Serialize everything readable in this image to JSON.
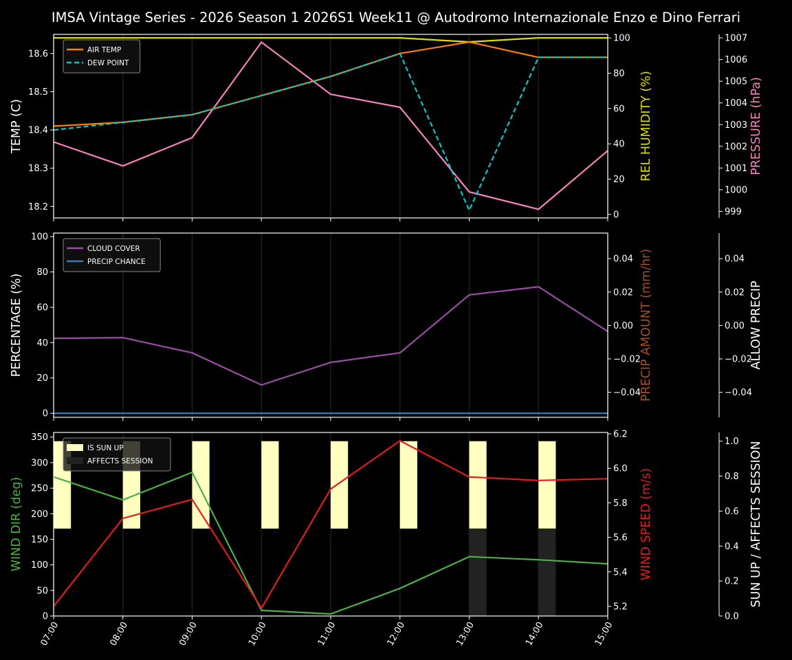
{
  "chart_data": {
    "type": "line",
    "title": "IMSA Vintage Series - 2026 Season 1 2026S1 Week11 @ Autodromo Internazionale Enzo e Dino Ferrari",
    "x": [
      "07:00",
      "08:00",
      "09:00",
      "10:00",
      "11:00",
      "12:00",
      "13:00",
      "14:00",
      "15:00"
    ],
    "grid": "vertical-only",
    "panels": [
      {
        "axes": [
          {
            "label": "TEMP (C)",
            "color": "#ffffff",
            "lim": [
              18.17,
              18.65
            ],
            "ticks": [
              {
                "v": 18.2,
                "t": "18.2"
              },
              {
                "v": 18.3,
                "t": "18.3"
              },
              {
                "v": 18.4,
                "t": "18.4"
              },
              {
                "v": 18.5,
                "t": "18.5"
              },
              {
                "v": 18.6,
                "t": "18.6"
              }
            ]
          },
          {
            "label": "REL HUMIDITY (%)",
            "color": "#dddd00",
            "lim": [
              -2,
              102
            ],
            "ticks": [
              {
                "v": 0,
                "t": "0"
              },
              {
                "v": 20,
                "t": "20"
              },
              {
                "v": 40,
                "t": "40"
              },
              {
                "v": 60,
                "t": "60"
              },
              {
                "v": 80,
                "t": "80"
              },
              {
                "v": 100,
                "t": "100"
              }
            ]
          },
          {
            "label": "PRESSURE (hPa)",
            "color": "#f781bf",
            "lim": [
              998.7,
              1007.16
            ],
            "ticks": [
              {
                "v": 999,
                "t": "999"
              },
              {
                "v": 1000,
                "t": "1000"
              },
              {
                "v": 1001,
                "t": "1001"
              },
              {
                "v": 1002,
                "t": "1002"
              },
              {
                "v": 1003,
                "t": "1003"
              },
              {
                "v": 1004,
                "t": "1004"
              },
              {
                "v": 1005,
                "t": "1005"
              },
              {
                "v": 1006,
                "t": "1006"
              },
              {
                "v": 1007,
                "t": "1007"
              }
            ]
          }
        ],
        "legend": "top-left",
        "series": [
          {
            "axis": 1,
            "color": "#dddd00",
            "dash": "",
            "values": [
              100,
              100,
              100,
              100,
              100,
              100,
              97.7,
              100,
              100
            ]
          },
          {
            "axis": 2,
            "color": "#f781bf",
            "dash": "",
            "values": [
              1002.2,
              1001.1,
              1002.4,
              1006.8,
              1004.4,
              1003.8,
              999.9,
              999.1,
              1001.8
            ]
          },
          {
            "name": "AIR TEMP",
            "axis": 0,
            "color": "#ff7f00",
            "dash": "",
            "values": [
              18.41,
              18.42,
              18.44,
              18.49,
              18.54,
              18.6,
              18.63,
              18.59,
              18.59
            ]
          },
          {
            "name": "DEW POINT",
            "axis": 0,
            "color": "#00cccc",
            "dash": "7,4",
            "values": [
              18.4,
              18.42,
              18.44,
              18.49,
              18.54,
              18.6,
              18.19,
              18.59,
              18.59
            ]
          }
        ]
      },
      {
        "axes": [
          {
            "label": "PERCENTAGE (%)",
            "color": "#ffffff",
            "lim": [
              -2.3,
              102
            ],
            "ticks": [
              {
                "v": 0,
                "t": "0"
              },
              {
                "v": 20,
                "t": "20"
              },
              {
                "v": 40,
                "t": "40"
              },
              {
                "v": 60,
                "t": "60"
              },
              {
                "v": 80,
                "t": "80"
              },
              {
                "v": 100,
                "t": "100"
              }
            ]
          },
          {
            "label": "PRECIP AMOUNT (mm/hr)",
            "color": "#a0522d",
            "lim": [
              -0.055,
              0.0553
            ],
            "ticks": [
              {
                "v": -0.04,
                "t": "−0.04"
              },
              {
                "v": -0.02,
                "t": "−0.02"
              },
              {
                "v": 0,
                "t": "0.00"
              },
              {
                "v": 0.02,
                "t": "0.02"
              },
              {
                "v": 0.04,
                "t": "0.04"
              }
            ]
          },
          {
            "label": "ALLOW PRECIP",
            "color": "#ffffff",
            "lim": [
              -0.055,
              0.0553
            ],
            "ticks": [
              {
                "v": -0.04,
                "t": "−0.04"
              },
              {
                "v": -0.02,
                "t": "−0.02"
              },
              {
                "v": 0,
                "t": "0.00"
              },
              {
                "v": 0.02,
                "t": "0.02"
              },
              {
                "v": 0.04,
                "t": "0.04"
              }
            ]
          }
        ],
        "legend": "top-left",
        "series": [
          {
            "name": "CLOUD COVER",
            "axis": 0,
            "color": "#984ea3",
            "dash": "",
            "values": [
              42.4,
              42.8,
              34.2,
              16,
              28.8,
              34.2,
              67,
              71.6,
              46.3
            ]
          },
          {
            "name": "PRECIP CHANCE",
            "axis": 0,
            "color": "#377eb8",
            "dash": "",
            "values": [
              0,
              0,
              0,
              0,
              0,
              0,
              0,
              0,
              0
            ]
          }
        ]
      },
      {
        "axes": [
          {
            "label": "WIND DIR (deg)",
            "color": "#4daf4a",
            "lim": [
              0,
              359
            ],
            "ticks": [
              {
                "v": 0,
                "t": "0"
              },
              {
                "v": 50,
                "t": "50"
              },
              {
                "v": 100,
                "t": "100"
              },
              {
                "v": 150,
                "t": "150"
              },
              {
                "v": 200,
                "t": "200"
              },
              {
                "v": 250,
                "t": "250"
              },
              {
                "v": 300,
                "t": "300"
              },
              {
                "v": 350,
                "t": "350"
              }
            ]
          },
          {
            "label": "WIND SPEED (m/s)",
            "color": "#e41a1c",
            "lim": [
              5.144,
              6.208
            ],
            "ticks": [
              {
                "v": 5.2,
                "t": "5.2"
              },
              {
                "v": 5.4,
                "t": "5.4"
              },
              {
                "v": 5.6,
                "t": "5.6"
              },
              {
                "v": 5.8,
                "t": "5.8"
              },
              {
                "v": 6.0,
                "t": "6.0"
              },
              {
                "v": 6.2,
                "t": "6.2"
              }
            ]
          },
          {
            "label": "SUN UP / AFFECTS SESSION",
            "color": "#ffffff",
            "lim": [
              0,
              1.05
            ],
            "ticks": [
              {
                "v": 0,
                "t": "0.0"
              },
              {
                "v": 0.2,
                "t": "0.2"
              },
              {
                "v": 0.4,
                "t": "0.4"
              },
              {
                "v": 0.6,
                "t": "0.6"
              },
              {
                "v": 0.8,
                "t": "0.8"
              },
              {
                "v": 1.0,
                "t": "1.0"
              }
            ]
          }
        ],
        "legend": "top-left",
        "bars": [
          {
            "name": "IS SUN UP",
            "axis": 2,
            "color": "#ffffc0",
            "range": [
              0.5,
              1.0
            ],
            "values": [
              1,
              1,
              1,
              1,
              1,
              1,
              1,
              1,
              0
            ]
          },
          {
            "name": "AFFECTS SESSION",
            "axis": 2,
            "color": "#222222",
            "range": [
              0,
              0.5
            ],
            "values": [
              0,
              0,
              0,
              0,
              0,
              0,
              1,
              1,
              0
            ]
          }
        ],
        "series": [
          {
            "axis": 0,
            "color": "#4daf4a",
            "dash": "",
            "values": [
              272,
              227,
              281,
              11,
              4,
              54,
              116,
              110,
              102
            ]
          },
          {
            "axis": 1,
            "color": "#e41a1c",
            "dash": "",
            "values": [
              5.2,
              5.71,
              5.82,
              5.19,
              5.88,
              6.16,
              5.95,
              5.93,
              5.94
            ]
          }
        ]
      }
    ]
  }
}
